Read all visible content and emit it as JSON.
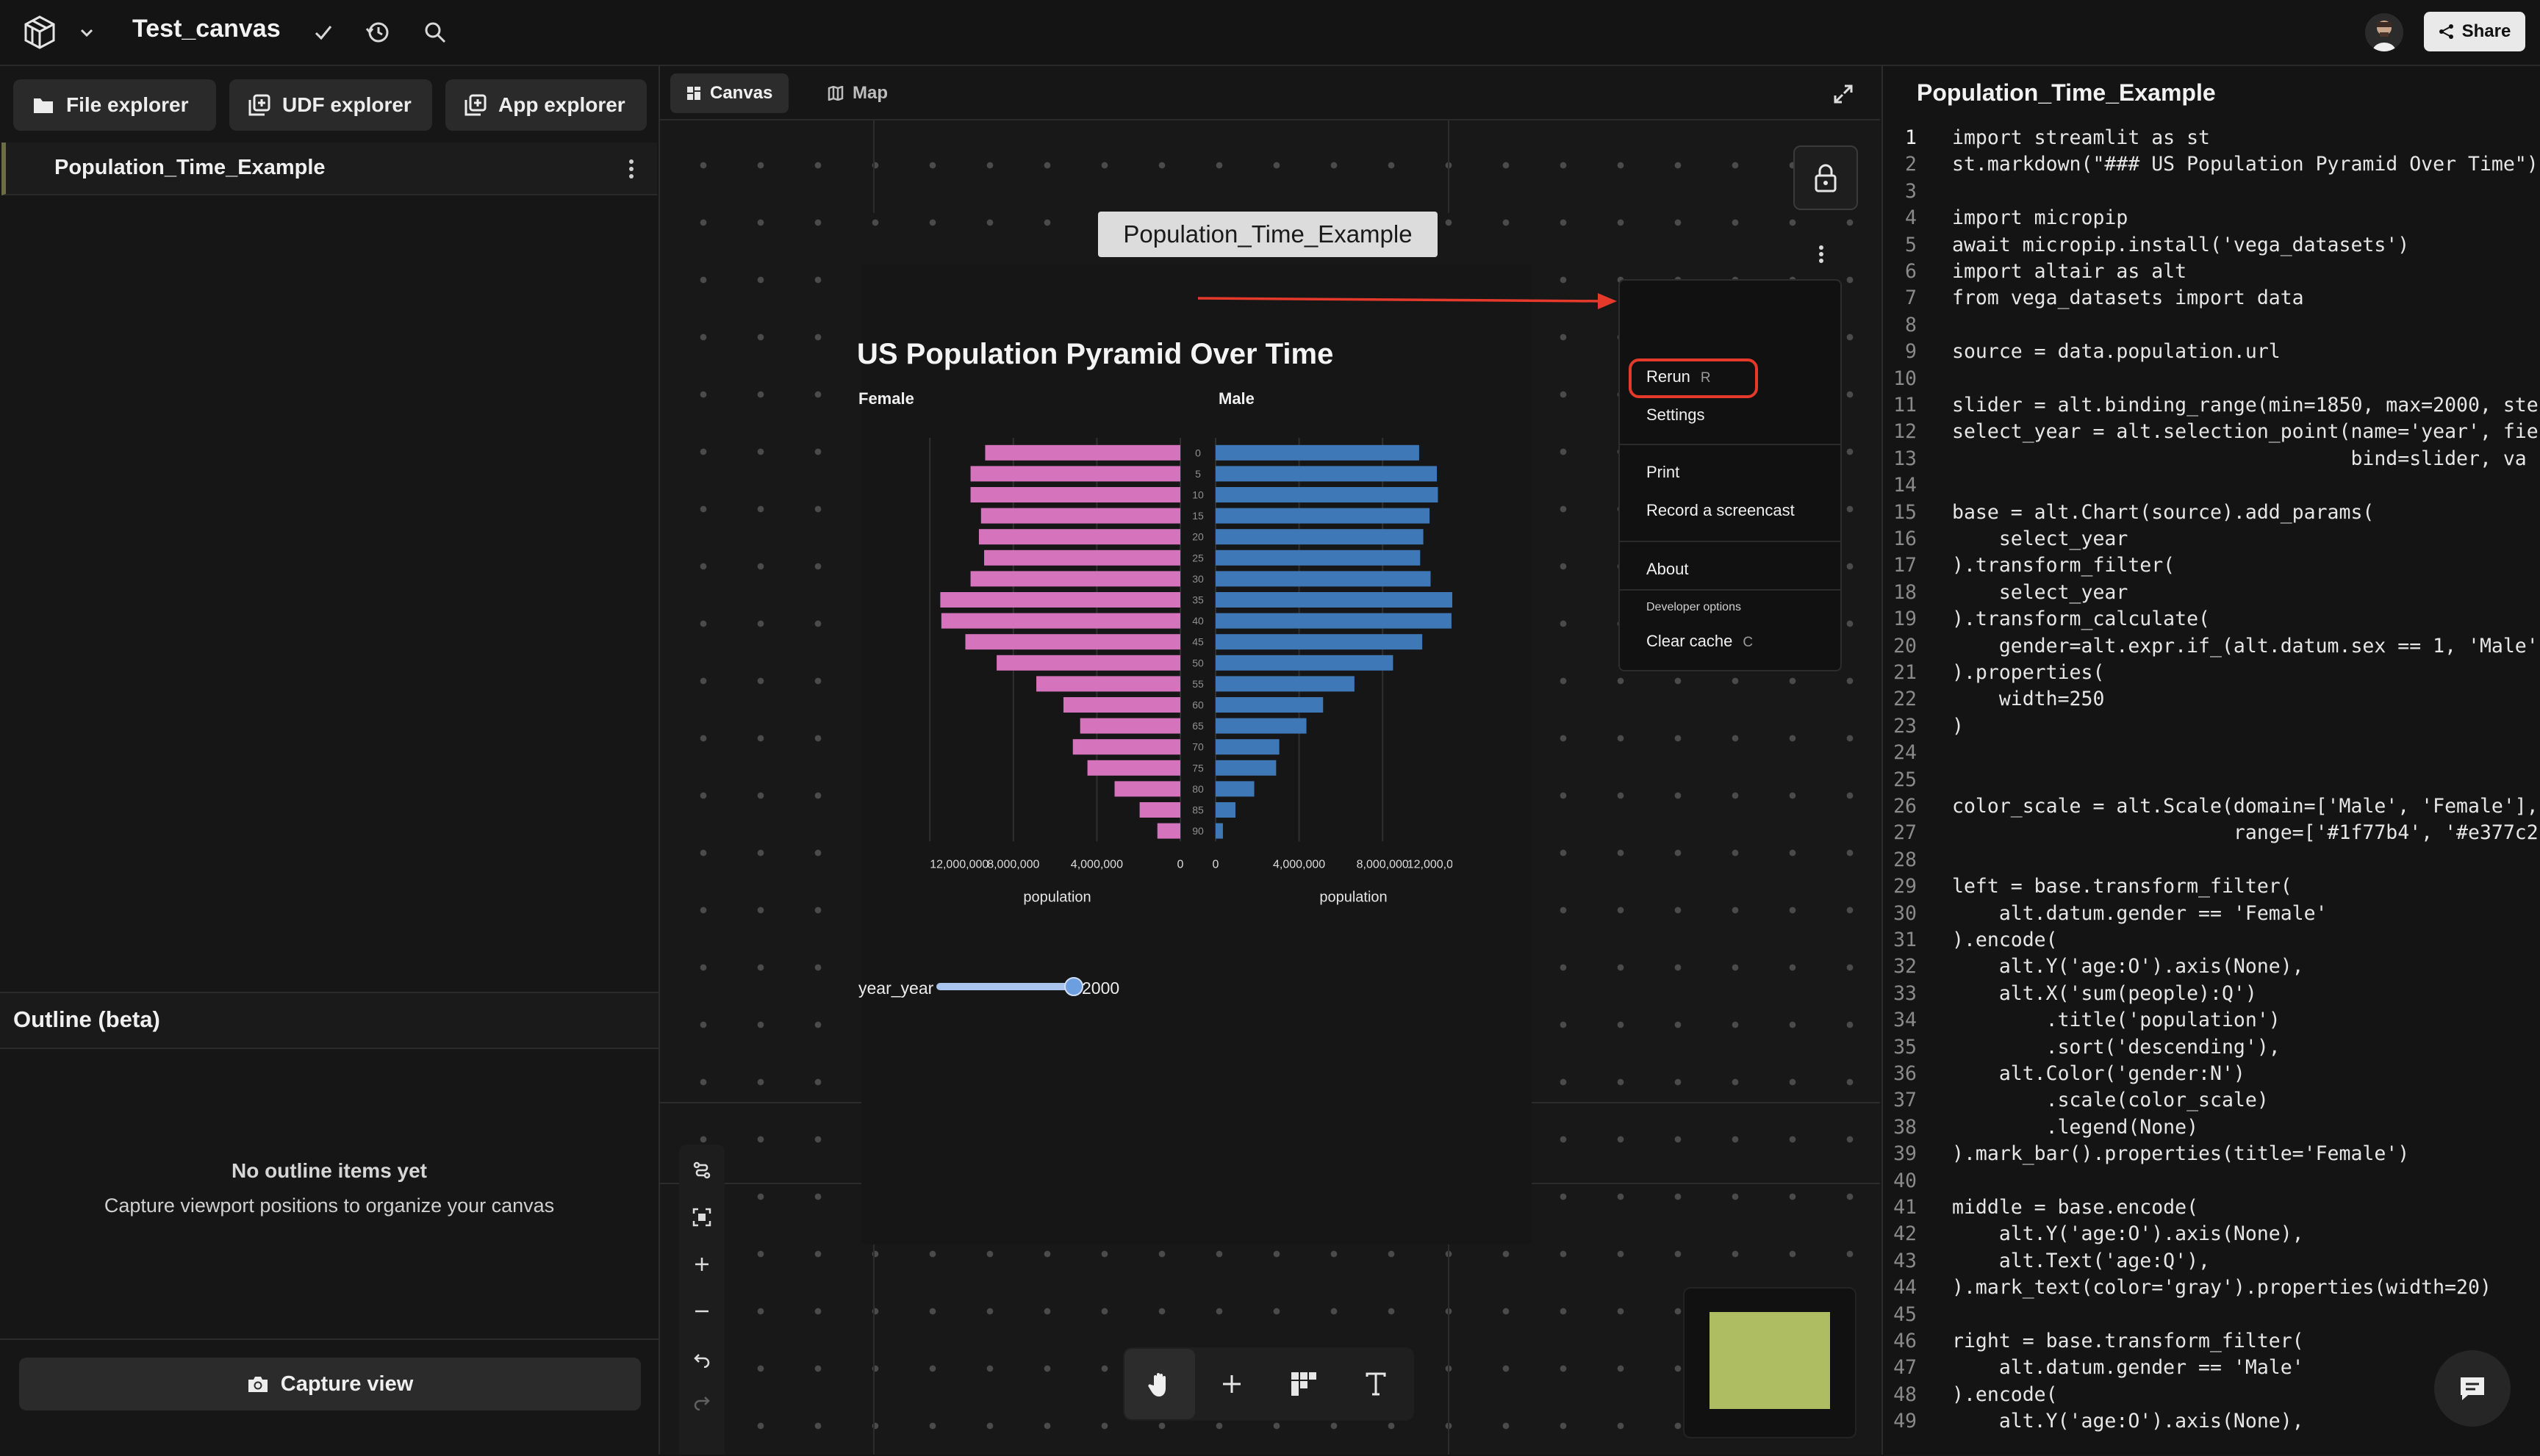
{
  "topbar": {
    "app_title": "Test_canvas",
    "share_label": "Share",
    "icons": [
      "fused-logo-icon",
      "chevron-down-icon",
      "check-icon",
      "history-icon",
      "search-icon",
      "share-icon",
      "avatar"
    ]
  },
  "left_panel": {
    "explorer_buttons": [
      {
        "label": "File explorer",
        "icon": "folder-icon"
      },
      {
        "label": "UDF explorer",
        "icon": "udf-icon"
      },
      {
        "label": "App explorer",
        "icon": "app-icon"
      }
    ],
    "file_item": "Population_Time_Example",
    "outline": {
      "title": "Outline (beta)",
      "empty_title": "No outline items yet",
      "empty_subtitle": "Capture viewport positions to organize your canvas"
    },
    "capture_button": "Capture view"
  },
  "canvas": {
    "tabs": [
      {
        "label": "Canvas",
        "active": true
      },
      {
        "label": "Map",
        "active": false
      }
    ],
    "node_title": "Population_Time_Example",
    "chart_heading": "US Population Pyramid Over Time",
    "slider": {
      "label": "year_year",
      "value": "2000",
      "min": 1850,
      "max": 2000,
      "fraction": 1.0
    },
    "context_menu": {
      "rerun": "Rerun",
      "rerun_shortcut": "R",
      "settings": "Settings",
      "print": "Print",
      "screencast": "Record a screencast",
      "about": "About",
      "developer_heading": "Developer options",
      "clear_cache": "Clear cache",
      "clear_cache_shortcut": "C"
    },
    "accent_colors": {
      "annotation": "#e5392b",
      "female": "#d573bc",
      "male": "#3f78b6",
      "minimap": "#aebd62"
    }
  },
  "chart_data": {
    "type": "bar",
    "title": "US Population Pyramid Over Time",
    "panels": [
      "Female",
      "Male"
    ],
    "categories": [
      "0",
      "5",
      "10",
      "15",
      "20",
      "25",
      "30",
      "35",
      "40",
      "45",
      "50",
      "55",
      "60",
      "65",
      "70",
      "75",
      "80",
      "85",
      "90"
    ],
    "series": [
      {
        "name": "Female",
        "color": "#d573bc",
        "values": [
          9350000,
          10050000,
          10050000,
          9550000,
          9650000,
          9400000,
          10050000,
          11500000,
          11450000,
          10300000,
          8800000,
          6900000,
          5600000,
          4800000,
          5150000,
          4450000,
          3150000,
          1950000,
          1100000
        ]
      },
      {
        "name": "Male",
        "color": "#3f78b6",
        "values": [
          9750000,
          10600000,
          10650000,
          10250000,
          9950000,
          9800000,
          10300000,
          11500000,
          11300000,
          9900000,
          8500000,
          6650000,
          5150000,
          4350000,
          3050000,
          2900000,
          1850000,
          950000,
          350000
        ]
      }
    ],
    "xlabel": "population",
    "ticks": [
      "0",
      "4,000,000",
      "8,000,000",
      "12,000,000"
    ],
    "xlim": [
      0,
      12500000
    ]
  },
  "code": {
    "title": "Population_Time_Example",
    "active_line": 1,
    "lines": [
      "import streamlit as st",
      "st.markdown(\"### US Population Pyramid Over Time\")",
      "",
      "import micropip",
      "await micropip.install('vega_datasets')",
      "import altair as alt",
      "from vega_datasets import data",
      "",
      "source = data.population.url",
      "",
      "slider = alt.binding_range(min=1850, max=2000, step",
      "select_year = alt.selection_point(name='year', fie",
      "                                  bind=slider, va",
      "",
      "base = alt.Chart(source).add_params(",
      "    select_year",
      ").transform_filter(",
      "    select_year",
      ").transform_calculate(",
      "    gender=alt.expr.if_(alt.datum.sex == 1, 'Male'",
      ").properties(",
      "    width=250",
      ")",
      "",
      "",
      "color_scale = alt.Scale(domain=['Male', 'Female'],",
      "                        range=['#1f77b4', '#e377c2",
      "",
      "left = base.transform_filter(",
      "    alt.datum.gender == 'Female'",
      ").encode(",
      "    alt.Y('age:O').axis(None),",
      "    alt.X('sum(people):Q')",
      "        .title('population')",
      "        .sort('descending'),",
      "    alt.Color('gender:N')",
      "        .scale(color_scale)",
      "        .legend(None)",
      ").mark_bar().properties(title='Female')",
      "",
      "middle = base.encode(",
      "    alt.Y('age:O').axis(None),",
      "    alt.Text('age:Q'),",
      ").mark_text(color='gray').properties(width=20)",
      "",
      "right = base.transform_filter(",
      "    alt.datum.gender == 'Male'",
      ").encode(",
      "    alt.Y('age:O').axis(None),"
    ]
  }
}
